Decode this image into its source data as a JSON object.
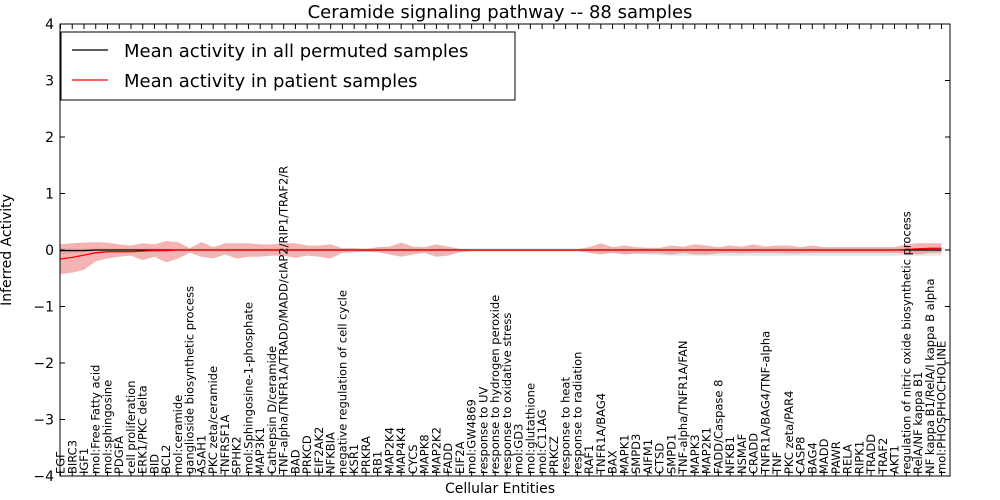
{
  "chart_data": {
    "type": "line",
    "title": "Ceramide signaling pathway -- 88 samples",
    "xlabel": "Cellular Entities",
    "ylabel": "Inferred Activity",
    "ylim": [
      -4,
      4
    ],
    "yticks": [
      "−4",
      "−3",
      "−2",
      "−1",
      "0",
      "1",
      "2",
      "3",
      "4"
    ],
    "legend": {
      "position": "top-left"
    },
    "categories": [
      "EGF",
      "BIRC3",
      "IGF1",
      "mol:Free Fatty acid",
      "mol:sphingosine",
      "PDGFA",
      "cell proliferation",
      "ERK1/PKC delta",
      "BID",
      "BCL2",
      "mol:ceramide",
      "ganglioside biosynthetic process",
      "ASAH1",
      "PKC zeta/ceramide",
      "TNFRSF1A",
      "SPHK2",
      "mol:Sphingosine-1-phosphate",
      "MAP3K1",
      "Cathepsin D/ceramide",
      "TNF-alpha/TNFR1A/TRADD/MADD/cIAP2/RIP1/TRAF2/R",
      "BAD",
      "PRKCD",
      "EIF2AK2",
      "NFKBIA",
      "negative regulation of cell cycle",
      "KSR1",
      "PRKRA",
      "RB1",
      "MAP2K4",
      "MAP4K4",
      "CYCS",
      "MAPK8",
      "MAP2K2",
      "FADD",
      "EIF2A",
      "mol:GW4869",
      "response to UV",
      "response to hydrogen peroxide",
      "response to oxidative stress",
      "mol:GD3",
      "mol:glutathione",
      "mol:C11AG",
      "PRKCZ",
      "response to heat",
      "response to radiation",
      "RAF1",
      "TNFR1A/BAG4",
      "BAX",
      "MAPK1",
      "SMPD3",
      "AIFM1",
      "CTSD",
      "SMPD1",
      "TNF-alpha/TNFR1A/FAN",
      "MAPK3",
      "MAP2K1",
      "FADD/Caspase 8",
      "NFKB1",
      "NSMAF",
      "CRADD",
      "TNFR1A/BAG4/TNF-alpha",
      "TNF",
      "PKC zeta/PAR4",
      "CASP8",
      "BAG4",
      "MADD",
      "PAWR",
      "RELA",
      "RIPK1",
      "TRADD",
      "TRAF2",
      "AKT1",
      "regulation of nitric oxide biosynthetic process",
      "RelA/NF kappa B1",
      "NF kappa B1/RelA/I kappa B alpha",
      "mol:PHOSPHOCHOLINE"
    ],
    "series": [
      {
        "name": "Mean activity in all permuted samples",
        "color": "#000000",
        "values": [
          -0.01,
          -0.01,
          -0.01,
          0,
          0,
          0,
          0,
          0,
          0,
          0,
          0,
          0,
          0,
          0,
          0,
          0,
          0,
          0,
          0,
          0,
          0,
          0,
          0,
          0,
          0,
          0,
          0,
          0,
          0,
          0,
          0,
          0,
          0,
          0,
          0,
          0,
          0,
          0,
          0,
          0,
          0,
          0,
          0,
          0,
          0,
          0,
          0,
          0,
          0,
          0,
          0,
          0,
          0,
          0,
          0,
          0,
          0,
          0,
          0,
          0,
          0,
          0,
          0,
          0,
          0,
          0,
          0,
          0,
          0,
          0,
          0,
          0,
          0,
          0,
          0,
          0
        ],
        "band_lower": [
          -0.08,
          -0.06,
          -0.04,
          -0.04,
          -0.04,
          -0.04,
          -0.03,
          -0.03,
          -0.03,
          -0.03,
          -0.03,
          -0.03,
          -0.03,
          -0.03,
          -0.03,
          -0.03,
          -0.03,
          -0.03,
          -0.03,
          -0.03,
          -0.03,
          -0.03,
          -0.03,
          -0.03,
          -0.03,
          -0.03,
          -0.03,
          -0.03,
          -0.03,
          -0.03,
          -0.03,
          -0.03,
          -0.03,
          -0.03,
          -0.03,
          -0.03,
          -0.03,
          -0.03,
          -0.03,
          -0.03,
          -0.03,
          -0.03,
          -0.03,
          -0.03,
          -0.03,
          -0.03,
          -0.04,
          -0.05,
          -0.06,
          -0.07,
          -0.08,
          -0.09,
          -0.1,
          -0.1,
          -0.1,
          -0.1,
          -0.1,
          -0.1,
          -0.1,
          -0.1,
          -0.1,
          -0.1,
          -0.1,
          -0.1,
          -0.1,
          -0.1,
          -0.1,
          -0.1,
          -0.1,
          -0.1,
          -0.1,
          -0.1,
          -0.1,
          -0.1,
          -0.1,
          -0.1
        ],
        "band_upper": [
          0.03,
          0.03,
          0.03,
          0.03,
          0.03,
          0.03,
          0.03,
          0.03,
          0.03,
          0.03,
          0.03,
          0.03,
          0.03,
          0.03,
          0.03,
          0.03,
          0.03,
          0.03,
          0.03,
          0.03,
          0.03,
          0.03,
          0.03,
          0.03,
          0.03,
          0.03,
          0.03,
          0.03,
          0.03,
          0.03,
          0.03,
          0.03,
          0.03,
          0.03,
          0.03,
          0.03,
          0.03,
          0.03,
          0.03,
          0.03,
          0.03,
          0.03,
          0.03,
          0.03,
          0.03,
          0.03,
          0.03,
          0.03,
          0.03,
          0.03,
          0.03,
          0.03,
          0.03,
          0.03,
          0.03,
          0.03,
          0.03,
          0.03,
          0.03,
          0.03,
          0.03,
          0.03,
          0.03,
          0.03,
          0.03,
          0.03,
          0.03,
          0.03,
          0.03,
          0.03,
          0.03,
          0.03,
          0.03,
          0.03,
          0.03,
          0.03
        ]
      },
      {
        "name": "Mean activity in patient samples",
        "color": "#ff0000",
        "values": [
          -0.16,
          -0.13,
          -0.09,
          -0.05,
          -0.03,
          -0.03,
          -0.03,
          -0.02,
          -0.01,
          -0.01,
          0,
          0,
          0,
          0,
          0,
          0,
          0,
          0,
          0,
          0,
          0,
          0,
          0,
          0,
          0,
          0,
          0,
          0,
          0,
          0,
          0,
          0,
          0,
          0,
          0,
          0,
          0,
          0,
          0,
          0,
          0,
          0,
          0,
          0,
          0,
          0,
          0,
          0,
          0,
          0,
          0,
          0,
          0,
          0,
          0,
          0,
          0,
          0,
          0,
          0,
          0,
          0,
          0,
          0,
          0,
          0,
          0,
          0,
          0,
          0,
          0,
          0,
          0.01,
          0.02,
          0.03,
          0.03
        ],
        "band_lower": [
          -0.43,
          -0.4,
          -0.35,
          -0.2,
          -0.15,
          -0.12,
          -0.1,
          -0.18,
          -0.12,
          -0.22,
          -0.15,
          -0.05,
          -0.12,
          -0.15,
          -0.08,
          -0.15,
          -0.12,
          -0.12,
          -0.1,
          -0.1,
          -0.14,
          -0.1,
          -0.12,
          -0.15,
          -0.05,
          -0.04,
          -0.03,
          -0.04,
          -0.08,
          -0.12,
          -0.08,
          -0.05,
          -0.12,
          -0.1,
          -0.04,
          -0.02,
          -0.02,
          -0.02,
          -0.02,
          -0.02,
          -0.02,
          -0.02,
          -0.02,
          -0.02,
          -0.02,
          -0.05,
          -0.08,
          -0.05,
          -0.08,
          -0.06,
          -0.06,
          -0.06,
          -0.08,
          -0.05,
          -0.08,
          -0.08,
          -0.06,
          -0.05,
          -0.06,
          -0.05,
          -0.05,
          -0.05,
          -0.06,
          -0.06,
          -0.05,
          -0.05,
          -0.05,
          -0.05,
          -0.05,
          -0.05,
          -0.05,
          -0.05,
          -0.06,
          -0.08,
          -0.05,
          -0.05
        ],
        "band_upper": [
          0.1,
          0.12,
          0.13,
          0.14,
          0.13,
          0.1,
          0.08,
          0.12,
          0.1,
          0.16,
          0.14,
          0.03,
          0.14,
          0.05,
          0.12,
          0.12,
          0.12,
          0.1,
          0.1,
          0.12,
          0.12,
          0.08,
          0.08,
          0.1,
          0.03,
          0.03,
          0.02,
          0.05,
          0.06,
          0.13,
          0.06,
          0.05,
          0.1,
          0.06,
          0.02,
          0.01,
          0.01,
          0.01,
          0.01,
          0.01,
          0.01,
          0.01,
          0.01,
          0.01,
          0.01,
          0.05,
          0.12,
          0.05,
          0.08,
          0.05,
          0.04,
          0.04,
          0.08,
          0.06,
          0.1,
          0.08,
          0.05,
          0.08,
          0.06,
          0.1,
          0.06,
          0.08,
          0.08,
          0.05,
          0.08,
          0.05,
          0.05,
          0.05,
          0.05,
          0.05,
          0.05,
          0.05,
          0.1,
          0.12,
          0.12,
          0.12
        ]
      }
    ]
  },
  "colors": {
    "permuted_band": "#d0d0d0",
    "patient_band": "#f08080"
  }
}
